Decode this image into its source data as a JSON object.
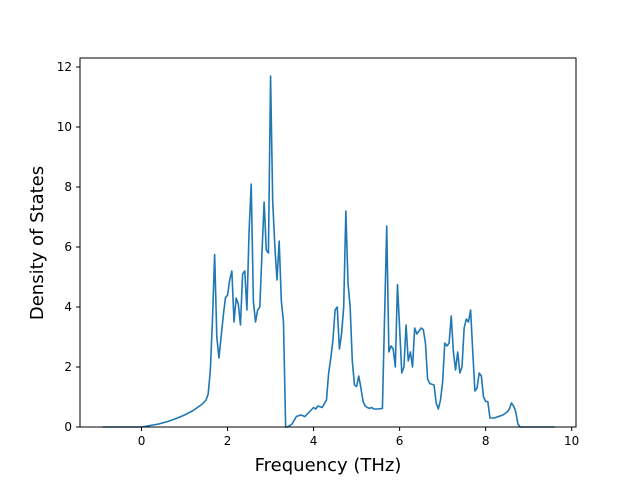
{
  "chart_data": {
    "type": "line",
    "title": "",
    "xlabel": "Frequency (THz)",
    "ylabel": "Density of States",
    "xlim": [
      -1.43,
      10.1
    ],
    "ylim": [
      0,
      12.3
    ],
    "xticks": [
      0,
      2,
      4,
      6,
      8,
      10
    ],
    "yticks": [
      0,
      2,
      4,
      6,
      8,
      10,
      12
    ],
    "grid": false,
    "legend": "none",
    "line_color": "#1f77b4",
    "series": [
      {
        "x": [
          -0.9,
          0.0,
          0.2,
          0.4,
          0.6,
          0.8,
          1.0,
          1.2,
          1.4,
          1.5,
          1.55,
          1.6,
          1.65,
          1.7,
          1.75,
          1.8,
          1.85,
          1.9,
          1.95,
          2.0,
          2.05,
          2.1,
          2.15,
          2.2,
          2.25,
          2.3,
          2.35,
          2.4,
          2.45,
          2.5,
          2.55,
          2.6,
          2.65,
          2.7,
          2.75,
          2.8,
          2.85,
          2.9,
          2.95,
          3.0,
          3.05,
          3.1,
          3.15,
          3.2,
          3.25,
          3.3,
          3.35,
          3.4,
          3.5,
          3.6,
          3.7,
          3.8,
          3.9,
          4.0,
          4.05,
          4.1,
          4.2,
          4.3,
          4.35,
          4.4,
          4.45,
          4.5,
          4.55,
          4.6,
          4.65,
          4.7,
          4.75,
          4.8,
          4.85,
          4.9,
          4.95,
          5.0,
          5.05,
          5.1,
          5.15,
          5.2,
          5.25,
          5.3,
          5.35,
          5.4,
          5.5,
          5.6,
          5.7,
          5.75,
          5.8,
          5.85,
          5.9,
          5.95,
          6.0,
          6.05,
          6.1,
          6.15,
          6.2,
          6.25,
          6.3,
          6.35,
          6.4,
          6.45,
          6.5,
          6.55,
          6.6,
          6.65,
          6.7,
          6.8,
          6.85,
          6.9,
          6.95,
          7.0,
          7.05,
          7.1,
          7.15,
          7.2,
          7.25,
          7.3,
          7.35,
          7.4,
          7.45,
          7.5,
          7.55,
          7.6,
          7.65,
          7.7,
          7.75,
          7.8,
          7.85,
          7.9,
          7.95,
          8.0,
          8.05,
          8.1,
          8.2,
          8.3,
          8.4,
          8.5,
          8.55,
          8.6,
          8.65,
          8.7,
          8.75,
          8.8,
          8.9,
          9.6
        ],
        "y": [
          0.0,
          0.0,
          0.05,
          0.1,
          0.18,
          0.28,
          0.4,
          0.55,
          0.75,
          0.9,
          1.1,
          1.9,
          3.6,
          5.75,
          3.0,
          2.3,
          3.0,
          3.7,
          4.3,
          4.4,
          4.9,
          5.2,
          3.5,
          4.3,
          4.1,
          3.4,
          5.1,
          5.2,
          3.9,
          6.5,
          8.1,
          4.2,
          3.5,
          3.9,
          4.0,
          5.8,
          7.5,
          5.9,
          5.8,
          11.7,
          7.5,
          6.0,
          4.9,
          6.2,
          4.2,
          3.5,
          0.0,
          0.0,
          0.1,
          0.35,
          0.4,
          0.35,
          0.5,
          0.65,
          0.6,
          0.7,
          0.65,
          0.9,
          1.8,
          2.3,
          2.9,
          3.9,
          4.0,
          2.6,
          3.1,
          4.0,
          7.2,
          4.8,
          4.0,
          2.2,
          1.4,
          1.35,
          1.7,
          1.3,
          0.85,
          0.7,
          0.65,
          0.62,
          0.65,
          0.6,
          0.6,
          0.62,
          6.7,
          2.5,
          2.7,
          2.6,
          2.0,
          4.75,
          3.3,
          1.8,
          2.0,
          3.4,
          2.2,
          2.5,
          2.0,
          3.3,
          3.1,
          3.2,
          3.3,
          3.25,
          2.8,
          1.6,
          1.45,
          1.4,
          0.8,
          0.6,
          0.9,
          1.5,
          2.8,
          2.7,
          2.8,
          3.7,
          2.5,
          1.9,
          2.5,
          1.8,
          2.0,
          3.3,
          3.6,
          3.5,
          3.9,
          2.5,
          1.2,
          1.3,
          1.8,
          1.7,
          1.0,
          0.85,
          0.85,
          0.3,
          0.3,
          0.35,
          0.4,
          0.5,
          0.6,
          0.8,
          0.7,
          0.5,
          0.1,
          0.0,
          0.0,
          0.0
        ]
      }
    ]
  }
}
